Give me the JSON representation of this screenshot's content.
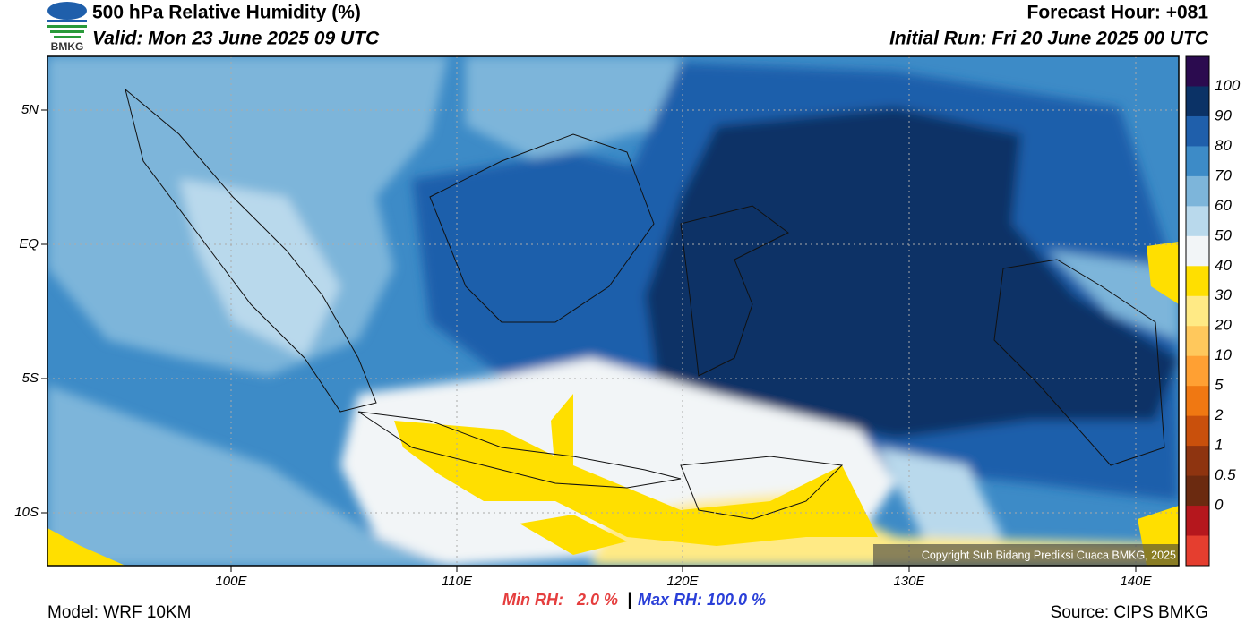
{
  "header": {
    "title": "500 hPa Relative Humidity (%)",
    "valid": "Valid: Mon 23 June 2025 09 UTC",
    "forecast_hour": "Forecast Hour: +081",
    "initial_run": "Initial Run: Fri 20 June 2025 00 UTC",
    "logo_text": "BMKG"
  },
  "map": {
    "lat_labels": [
      "5N",
      "EQ",
      "5S",
      "10S"
    ],
    "lon_labels": [
      "100E",
      "110E",
      "120E",
      "130E",
      "140E"
    ],
    "copyright": "Copyright Sub Bidang Prediksi Cuaca BMKG, 2025"
  },
  "colorbar": {
    "labels": [
      "100",
      "90",
      "80",
      "70",
      "60",
      "50",
      "40",
      "30",
      "20",
      "10",
      "5",
      "2",
      "1",
      "0.5",
      "0"
    ],
    "colors": [
      "#2b0b4f",
      "#0b3266",
      "#1f5fab",
      "#3d8bc7",
      "#7db5da",
      "#b9d9ec",
      "#f2f5f7",
      "#ffdf00",
      "#ffea85",
      "#ffc85c",
      "#ffa033",
      "#f07812",
      "#c9500c",
      "#8e3410",
      "#6b2a10",
      "#b5171d",
      "#e53e2f"
    ]
  },
  "footer": {
    "model": "Model: WRF 10KM",
    "min_label": "Min RH:   2.0 %",
    "separator": "|",
    "max_label": "Max RH: 100.0 %",
    "source": "Source: CIPS BMKG"
  }
}
